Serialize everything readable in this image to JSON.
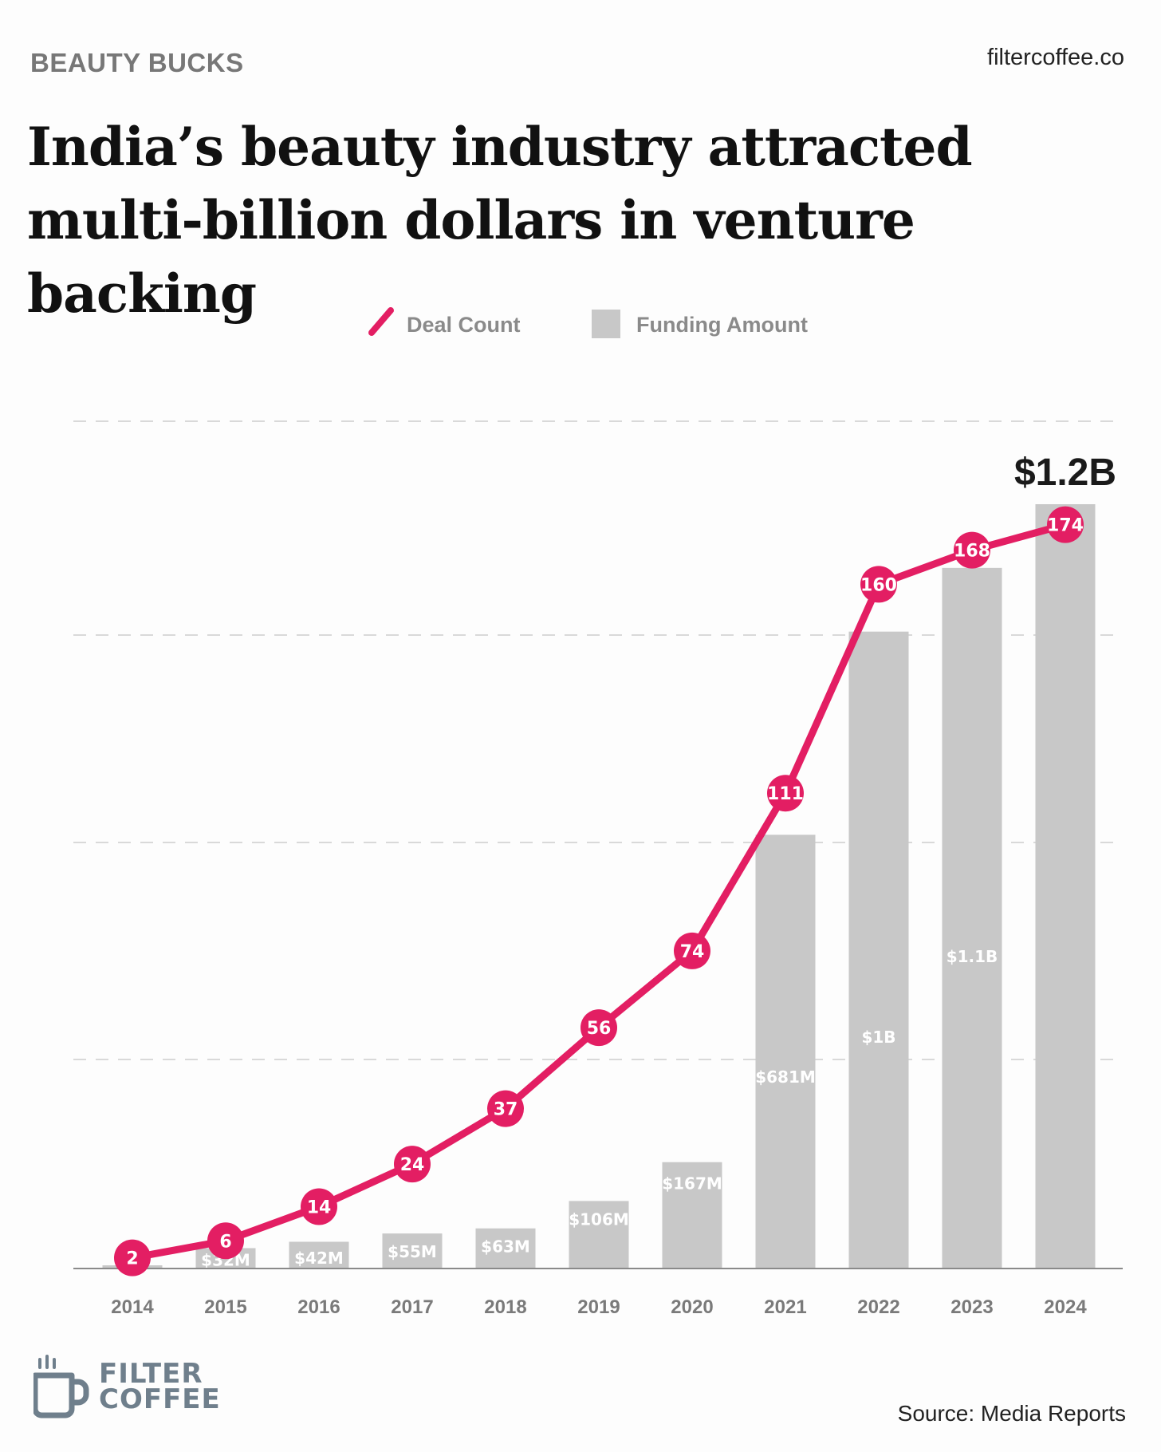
{
  "header": {
    "kicker": "BEAUTY BUCKS",
    "site": "filtercoffee.co",
    "title": "India’s beauty industry attracted multi-billion dollars in venture backing"
  },
  "footer": {
    "logo_line1": "FILTER",
    "logo_line2": "COFFEE",
    "source": "Source: Media Reports"
  },
  "colors": {
    "line": "#e31e63",
    "bar": "#c8c8c8",
    "bar_label": "#ffffff",
    "tick": "#7a7a7a",
    "legend_text": "#8a8a8a",
    "callout": "#1a1a1a"
  },
  "chart_data": {
    "type": "bar",
    "categories": [
      "2014",
      "2015",
      "2016",
      "2017",
      "2018",
      "2019",
      "2020",
      "2021",
      "2022",
      "2023",
      "2024"
    ],
    "legend": [
      {
        "name": "Deal Count",
        "kind": "line"
      },
      {
        "name": "Funding Amount",
        "kind": "bar"
      }
    ],
    "legend_position": "top-center",
    "grid": "horizontal-dashed",
    "series": [
      {
        "name": "Funding Amount",
        "type": "bar",
        "unit": "USD millions",
        "values": [
          5,
          32,
          42,
          55,
          63,
          106,
          167,
          681,
          1000,
          1100,
          1200
        ],
        "labels": [
          "",
          "$32M",
          "$42M",
          "$55M",
          "$63M",
          "$106M",
          "$167M",
          "$681M",
          "$1B",
          "$1.1B",
          ""
        ]
      },
      {
        "name": "Deal Count",
        "type": "line",
        "values": [
          2,
          6,
          14,
          24,
          37,
          56,
          74,
          111,
          160,
          168,
          174
        ]
      }
    ],
    "callout": {
      "category": "2024",
      "text": "$1.2B"
    }
  }
}
